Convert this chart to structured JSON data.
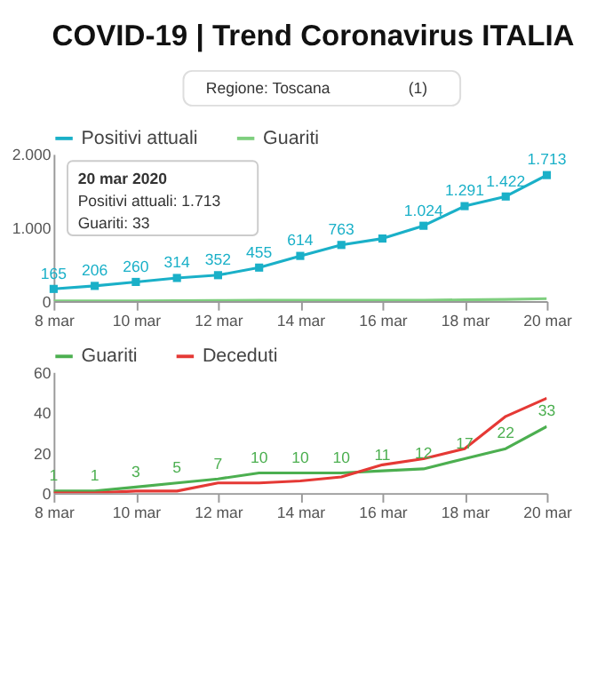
{
  "chart_data": [
    {
      "type": "line",
      "title": "COVID-19 | Trend Coronavirus ITALIA",
      "annotations": [
        "Regione: Toscana",
        "(1)",
        "20 mar 2020",
        "Positivi attuali: 1.713",
        "Guariti: 33"
      ],
      "x": [
        "2020-03-08",
        "2020-03-09",
        "2020-03-10",
        "2020-03-11",
        "2020-03-12",
        "2020-03-13",
        "2020-03-14",
        "2020-03-15",
        "2020-03-16",
        "2020-03-17",
        "2020-03-18",
        "2020-03-19",
        "2020-03-20"
      ],
      "xlim": [
        "2020-03-08",
        "2020-03-20"
      ],
      "xticks": [
        {
          "value": "2020-03-08",
          "label": "8 mar"
        },
        {
          "value": "2020-03-10",
          "label": "10 mar"
        },
        {
          "value": "2020-03-12",
          "label": "12 mar"
        },
        {
          "value": "2020-03-14",
          "label": "14 mar"
        },
        {
          "value": "2020-03-16",
          "label": "16 mar"
        },
        {
          "value": "2020-03-18",
          "label": "18 mar"
        },
        {
          "value": "2020-03-20",
          "label": "20 mar"
        }
      ],
      "ylim": [
        0,
        2000
      ],
      "yticks": [
        0,
        {
          "value": 1000,
          "label": "1.000"
        },
        {
          "value": 2000,
          "label": "2.000"
        }
      ],
      "legend": "top left",
      "series": [
        {
          "name": "Positivi attuali",
          "color": "#1ab0c8",
          "marker": "square",
          "values": [
            165,
            206,
            260,
            314,
            352,
            455,
            614,
            763,
            850,
            1024,
            1291,
            1422,
            1713
          ],
          "value_labels": [
            "165",
            "206",
            "260",
            "314",
            "352",
            "455",
            "614",
            "763",
            null,
            "1.024",
            "1.291",
            "1.422",
            "1.713"
          ]
        },
        {
          "name": "Guariti",
          "color": "#7fcf7f",
          "values": [
            1,
            1,
            3,
            5,
            7,
            10,
            10,
            10,
            11,
            12,
            17,
            22,
            33
          ]
        }
      ]
    },
    {
      "type": "line",
      "x": [
        "2020-03-08",
        "2020-03-09",
        "2020-03-10",
        "2020-03-11",
        "2020-03-12",
        "2020-03-13",
        "2020-03-14",
        "2020-03-15",
        "2020-03-16",
        "2020-03-17",
        "2020-03-18",
        "2020-03-19",
        "2020-03-20"
      ],
      "xlim": [
        "2020-03-08",
        "2020-03-20"
      ],
      "xticks": [
        {
          "value": "2020-03-08",
          "label": "8 mar"
        },
        {
          "value": "2020-03-10",
          "label": "10 mar"
        },
        {
          "value": "2020-03-12",
          "label": "12 mar"
        },
        {
          "value": "2020-03-14",
          "label": "14 mar"
        },
        {
          "value": "2020-03-16",
          "label": "16 mar"
        },
        {
          "value": "2020-03-18",
          "label": "18 mar"
        },
        {
          "value": "2020-03-20",
          "label": "20 mar"
        }
      ],
      "ylim": [
        0,
        60
      ],
      "yticks": [
        0,
        20,
        40,
        60
      ],
      "legend": "top left",
      "series": [
        {
          "name": "Guariti",
          "color": "#4caf50",
          "values": [
            1,
            1,
            3,
            5,
            7,
            10,
            10,
            10,
            11,
            12,
            17,
            22,
            33
          ],
          "value_labels": [
            "1",
            "1",
            "3",
            "5",
            "7",
            "10",
            "10",
            "10",
            "11",
            "12",
            "17",
            "22",
            "33"
          ]
        },
        {
          "name": "Deceduti",
          "color": "#e53935",
          "values": [
            0,
            0,
            1,
            1,
            5,
            5,
            6,
            8,
            14,
            17,
            22,
            38,
            47
          ]
        }
      ]
    }
  ]
}
